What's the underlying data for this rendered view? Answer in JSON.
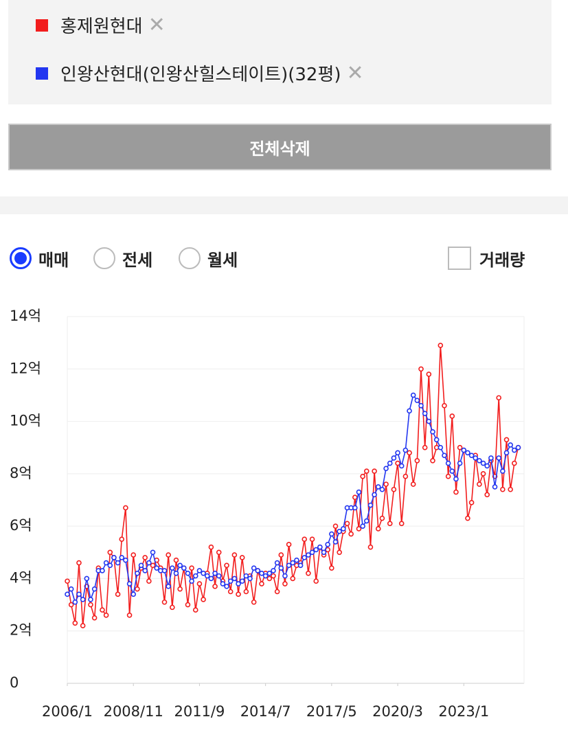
{
  "filters": {
    "clear_all": "전체삭제"
  },
  "options": {
    "trade_types": [
      "매매",
      "전세",
      "월세"
    ],
    "selected": 0,
    "volume": "거래량"
  },
  "chart_data": {
    "type": "line",
    "x": [
      "2006/1",
      "2006/3",
      "2006/5",
      "2006/7",
      "2006/9",
      "2006/11",
      "2007/1",
      "2007/3",
      "2007/5",
      "2007/7",
      "2007/9",
      "2007/11",
      "2008/1",
      "2008/3",
      "2008/5",
      "2008/7",
      "2008/9",
      "2008/11",
      "2009/1",
      "2009/3",
      "2009/5",
      "2009/7",
      "2009/9",
      "2009/11",
      "2010/1",
      "2010/3",
      "2010/5",
      "2010/7",
      "2010/9",
      "2010/11",
      "2011/1",
      "2011/3",
      "2011/5",
      "2011/7",
      "2011/9",
      "2011/11",
      "2012/1",
      "2012/3",
      "2012/5",
      "2012/7",
      "2012/9",
      "2012/11",
      "2013/1",
      "2013/3",
      "2013/5",
      "2013/7",
      "2013/9",
      "2013/11",
      "2014/1",
      "2014/3",
      "2014/5",
      "2014/7",
      "2014/9",
      "2014/11",
      "2015/1",
      "2015/3",
      "2015/5",
      "2015/7",
      "2015/9",
      "2015/11",
      "2016/1",
      "2016/3",
      "2016/5",
      "2016/7",
      "2016/9",
      "2016/11",
      "2017/1",
      "2017/3",
      "2017/5",
      "2017/7",
      "2017/9",
      "2017/11",
      "2018/1",
      "2018/3",
      "2018/5",
      "2018/7",
      "2018/9",
      "2018/11",
      "2019/1",
      "2019/3",
      "2019/5",
      "2019/7",
      "2019/9",
      "2019/11",
      "2020/1",
      "2020/3",
      "2020/5",
      "2020/7",
      "2020/9",
      "2020/11",
      "2021/1",
      "2021/3",
      "2021/5",
      "2021/7",
      "2021/9",
      "2021/11",
      "2022/1",
      "2022/3",
      "2022/5",
      "2022/7",
      "2022/9",
      "2022/11",
      "2023/1",
      "2023/3",
      "2023/5",
      "2023/7",
      "2023/9",
      "2023/11",
      "2024/1",
      "2024/3",
      "2024/5",
      "2024/7",
      "2024/9",
      "2024/11",
      "2025/1",
      "2025/3",
      "2025/5"
    ],
    "series": [
      {
        "name": "홍제원현대",
        "color": "#f21d1d",
        "values": [
          3.9,
          3.0,
          2.3,
          4.6,
          2.2,
          3.7,
          3.0,
          2.5,
          4.4,
          2.8,
          2.6,
          5.0,
          4.8,
          3.4,
          5.5,
          6.7,
          2.6,
          4.9,
          3.6,
          4.4,
          4.8,
          3.9,
          4.5,
          4.7,
          4.4,
          3.1,
          4.9,
          2.9,
          4.7,
          3.6,
          4.4,
          3.0,
          4.4,
          2.8,
          3.8,
          3.2,
          4.2,
          5.2,
          3.7,
          5.0,
          3.9,
          4.5,
          3.5,
          4.9,
          3.4,
          4.8,
          3.5,
          4.1,
          3.1,
          4.3,
          3.8,
          4.2,
          4.0,
          4.1,
          3.5,
          4.9,
          3.8,
          5.3,
          4.0,
          4.5,
          4.6,
          5.5,
          4.2,
          5.5,
          3.9,
          5.2,
          4.9,
          5.1,
          4.4,
          6.0,
          5.0,
          5.8,
          6.1,
          5.7,
          7.1,
          5.9,
          7.9,
          8.1,
          5.2,
          8.1,
          5.9,
          6.3,
          7.6,
          6.1,
          7.4,
          8.4,
          6.1,
          7.9,
          8.8,
          7.6,
          8.5,
          12.0,
          9.0,
          11.8,
          8.5,
          9.0,
          12.9,
          10.6,
          7.9,
          10.2,
          7.3,
          9.0,
          8.9,
          6.3,
          6.9,
          8.7,
          7.6,
          8.0,
          7.2,
          8.5,
          7.9,
          10.9,
          7.4,
          9.3,
          7.4,
          8.4,
          9.0
        ]
      },
      {
        "name": "인왕산현대(인왕산힐스테이트)(32평)",
        "color": "#2236f0",
        "values": [
          3.4,
          3.6,
          3.1,
          3.4,
          3.2,
          4.0,
          3.2,
          3.6,
          4.3,
          4.3,
          4.6,
          4.5,
          4.8,
          4.6,
          4.8,
          4.7,
          3.8,
          3.4,
          4.2,
          4.5,
          4.3,
          4.6,
          5.0,
          4.4,
          4.3,
          4.3,
          3.7,
          4.4,
          4.2,
          4.5,
          4.4,
          4.2,
          3.9,
          4.1,
          4.3,
          4.2,
          4.1,
          4.0,
          4.2,
          4.1,
          3.8,
          3.7,
          3.9,
          4.0,
          3.8,
          3.9,
          4.1,
          4.0,
          4.4,
          4.3,
          4.2,
          4.1,
          4.2,
          4.3,
          4.6,
          4.4,
          4.1,
          4.5,
          4.6,
          4.7,
          4.5,
          4.8,
          4.9,
          5.0,
          5.1,
          5.2,
          5.0,
          5.3,
          5.7,
          5.4,
          5.8,
          5.9,
          6.7,
          6.7,
          6.7,
          7.3,
          6.0,
          6.2,
          6.8,
          7.2,
          7.5,
          7.4,
          8.2,
          8.4,
          8.6,
          8.8,
          8.3,
          8.9,
          10.4,
          11.0,
          10.8,
          10.6,
          10.3,
          10.0,
          9.6,
          9.3,
          9.0,
          8.7,
          8.4,
          8.1,
          7.8,
          8.4,
          8.9,
          8.8,
          8.7,
          8.6,
          8.5,
          8.4,
          8.3,
          8.6,
          7.5,
          8.6,
          8.1,
          8.8,
          9.1,
          8.9,
          9.0
        ]
      }
    ],
    "xlim": [
      "2006/1",
      "2025/8"
    ],
    "xticks": [
      "2006/1",
      "2008/11",
      "2011/9",
      "2014/7",
      "2017/5",
      "2020/3",
      "2023/1"
    ],
    "ylim": [
      0,
      14
    ],
    "yticks": [
      0,
      {
        "value": 2,
        "label": "2억"
      },
      {
        "value": 4,
        "label": "4억"
      },
      {
        "value": 6,
        "label": "6억"
      },
      {
        "value": 8,
        "label": "8억"
      },
      {
        "value": 10,
        "label": "10억"
      },
      {
        "value": 12,
        "label": "12억"
      },
      {
        "value": 14,
        "label": "14억"
      }
    ],
    "grid": true
  }
}
